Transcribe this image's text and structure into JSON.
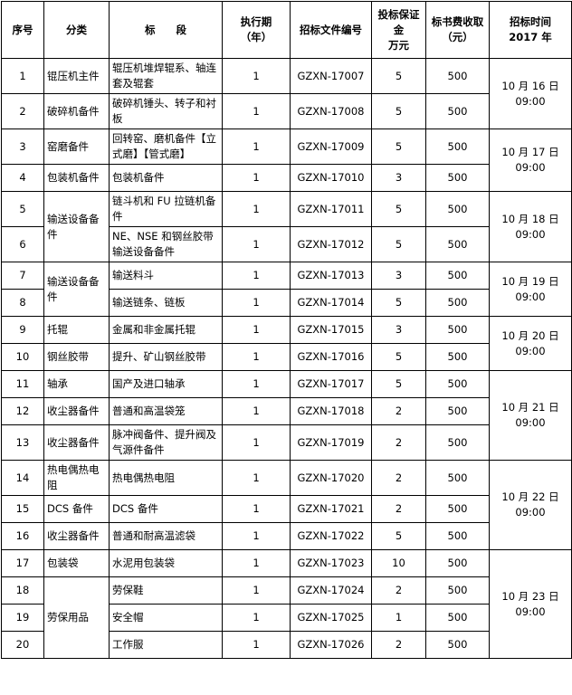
{
  "table": {
    "header": [
      [
        "序号"
      ],
      [
        "分类"
      ],
      [
        "标　　段"
      ],
      [
        "执行期",
        "（年）"
      ],
      [
        "招标文件编号"
      ],
      [
        "投标保证",
        "金",
        "万元"
      ],
      [
        "标书费收取",
        "（元）"
      ],
      [
        "招标时间",
        "2017 年"
      ]
    ],
    "rows": [
      [
        "1",
        "锟压机主件",
        "辊压机堆焊辊系、轴连套及辊套",
        "1",
        "GZXN-17007",
        "5",
        "500",
        [
          "10 月 16 日",
          "09:00"
        ]
      ],
      [
        "2",
        "破碎机备件",
        "破碎机锤头、转子和衬板",
        "1",
        "GZXN-17008",
        "5",
        "500"
      ],
      [
        "3",
        "窑磨备件",
        "回转窑、磨机备件【立式磨】【管式磨】",
        "1",
        "GZXN-17009",
        "5",
        "500",
        [
          "10 月 17 日",
          "09:00"
        ]
      ],
      [
        "4",
        "包装机备件",
        "包装机备件",
        "1",
        "GZXN-17010",
        "3",
        "500"
      ],
      [
        "5",
        "输送设备备件",
        "链斗机和 FU 拉链机备件",
        "1",
        "GZXN-17011",
        "5",
        "500",
        [
          "10 月 18 日",
          "09:00"
        ]
      ],
      [
        "6",
        "NE、NSE 和钢丝胶带输送设备备件",
        "1",
        "GZXN-17012",
        "5",
        "500"
      ],
      [
        "7",
        "输送设备备件",
        "输送料斗",
        "1",
        "GZXN-17013",
        "3",
        "500",
        [
          "10 月 19 日",
          "09:00"
        ]
      ],
      [
        "8",
        "输送链条、链板",
        "1",
        "GZXN-17014",
        "5",
        "500"
      ],
      [
        "9",
        "托辊",
        "金属和非金属托辊",
        "1",
        "GZXN-17015",
        "3",
        "500",
        [
          "10 月 20 日",
          "09:00"
        ]
      ],
      [
        "10",
        "钢丝胶带",
        "提升、矿山钢丝胶带",
        "1",
        "GZXN-17016",
        "5",
        "500"
      ],
      [
        "11",
        "轴承",
        "国产及进口轴承",
        "1",
        "GZXN-17017",
        "5",
        "500",
        [
          "10 月 21 日",
          "09:00"
        ]
      ],
      [
        "12",
        "收尘器备件",
        "普通和高温袋笼",
        "1",
        "GZXN-17018",
        "2",
        "500"
      ],
      [
        "13",
        "收尘器备件",
        "脉冲阀备件、提升阀及气源件备件",
        "1",
        "GZXN-17019",
        "2",
        "500"
      ],
      [
        "14",
        "热电偶热电阻",
        "热电偶热电阻",
        "1",
        "GZXN-17020",
        "2",
        "500",
        [
          "10 月 22 日",
          "09:00"
        ]
      ],
      [
        "15",
        "DCS 备件",
        "DCS 备件",
        "1",
        "GZXN-17021",
        "2",
        "500"
      ],
      [
        "16",
        "收尘器备件",
        "普通和耐高温滤袋",
        "1",
        "GZXN-17022",
        "5",
        "500"
      ],
      [
        "17",
        "包装袋",
        "水泥用包装袋",
        "1",
        "GZXN-17023",
        "10",
        "500",
        [
          "10 月 23 日",
          "09:00"
        ]
      ],
      [
        "18",
        "劳保用品",
        "劳保鞋",
        "1",
        "GZXN-17024",
        "2",
        "500"
      ],
      [
        "19",
        "安全帽",
        "1",
        "GZXN-17025",
        "1",
        "500"
      ],
      [
        "20",
        "工作服",
        "1",
        "GZXN-17026",
        "2",
        "500"
      ]
    ]
  }
}
